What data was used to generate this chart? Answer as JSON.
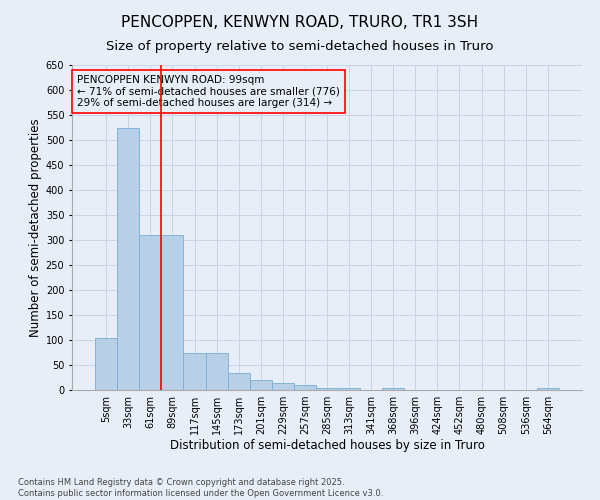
{
  "title1": "PENCOPPEN, KENWYN ROAD, TRURO, TR1 3SH",
  "title2": "Size of property relative to semi-detached houses in Truro",
  "xlabel": "Distribution of semi-detached houses by size in Truro",
  "ylabel": "Number of semi-detached properties",
  "categories": [
    "5sqm",
    "33sqm",
    "61sqm",
    "89sqm",
    "117sqm",
    "145sqm",
    "173sqm",
    "201sqm",
    "229sqm",
    "257sqm",
    "285sqm",
    "313sqm",
    "341sqm",
    "368sqm",
    "396sqm",
    "424sqm",
    "452sqm",
    "480sqm",
    "508sqm",
    "536sqm",
    "564sqm"
  ],
  "values": [
    105,
    525,
    310,
    310,
    75,
    75,
    35,
    20,
    15,
    10,
    5,
    5,
    0,
    5,
    0,
    0,
    0,
    0,
    0,
    0,
    5
  ],
  "bar_color": "#b8cfe8",
  "bar_edge_color": "#7aadd4",
  "background_color": "#e8eef8",
  "grid_color": "#c8d4e8",
  "ylim": [
    0,
    650
  ],
  "yticks": [
    0,
    50,
    100,
    150,
    200,
    250,
    300,
    350,
    400,
    450,
    500,
    550,
    600,
    650
  ],
  "red_line_x": 2.5,
  "annotation_text": "PENCOPPEN KENWYN ROAD: 99sqm\n← 71% of semi-detached houses are smaller (776)\n29% of semi-detached houses are larger (314) →",
  "footer": "Contains HM Land Registry data © Crown copyright and database right 2025.\nContains public sector information licensed under the Open Government Licence v3.0.",
  "title_fontsize": 11,
  "subtitle_fontsize": 9.5,
  "axis_label_fontsize": 8.5,
  "tick_fontsize": 7,
  "annotation_fontsize": 7.5,
  "footer_fontsize": 6
}
